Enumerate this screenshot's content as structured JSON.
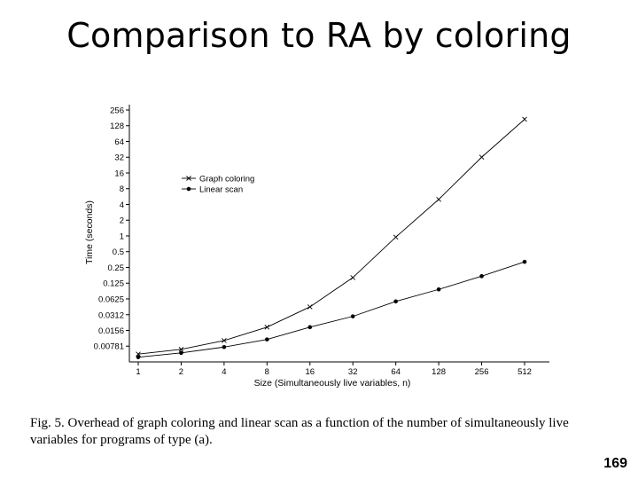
{
  "slide": {
    "title": "Comparison to RA by coloring",
    "caption": "Fig. 5.  Overhead of graph coloring and linear scan as a function of the number of simultaneously live variables for programs of type (a).",
    "page_number": "169"
  },
  "chart_data": {
    "type": "line",
    "title": "",
    "xlabel": "Size (Simultaneously live variables, n)",
    "ylabel": "Time (seconds)",
    "x_scale": "log2",
    "y_scale": "log2",
    "x": [
      1,
      2,
      4,
      8,
      16,
      32,
      64,
      128,
      256,
      512
    ],
    "x_tick_labels": [
      "1",
      "2",
      "4",
      "8",
      "16",
      "32",
      "64",
      "128",
      "256",
      "512"
    ],
    "y_ticks": [
      0.00781,
      0.0156,
      0.0312,
      0.0625,
      0.125,
      0.25,
      0.5,
      1,
      2,
      4,
      8,
      16,
      32,
      64,
      128,
      256
    ],
    "y_tick_labels": [
      "0.00781",
      "0.0156",
      "0.0312",
      "0.0625",
      "0.125",
      "0.25",
      "0.5",
      "1",
      "2",
      "4",
      "8",
      "16",
      "32",
      "64",
      "128",
      "256"
    ],
    "ylim": [
      0.0039,
      256
    ],
    "grid": false,
    "legend_position": "upper-left",
    "series": [
      {
        "name": "Graph coloring",
        "marker": "x",
        "color": "#000000",
        "values": [
          0.0055,
          0.0068,
          0.01,
          0.018,
          0.044,
          0.16,
          0.95,
          5.0,
          32,
          170
        ]
      },
      {
        "name": "Linear scan",
        "marker": "dot",
        "color": "#000000",
        "values": [
          0.0048,
          0.0058,
          0.0075,
          0.0105,
          0.018,
          0.029,
          0.056,
          0.095,
          0.17,
          0.32
        ]
      }
    ]
  }
}
